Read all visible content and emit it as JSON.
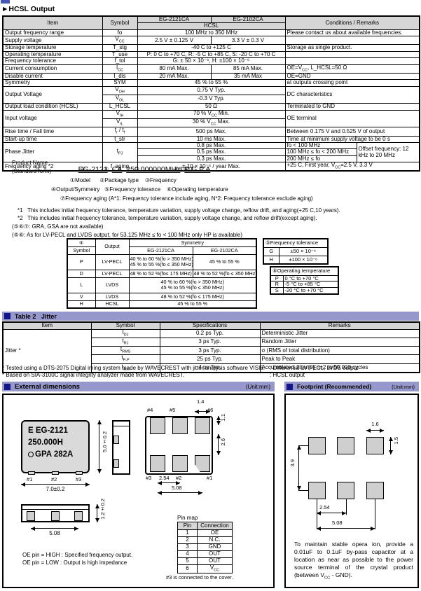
{
  "page": {
    "heading": "►HCSL Output"
  },
  "colors": {
    "bar": "#9697ca",
    "bar_square": "#15158a",
    "table_header": "#d6d6d6",
    "package_fill": "#dadada",
    "pad_fill": "#cfcfcf",
    "logo_blue": "#4358b0"
  },
  "spec": {
    "head": {
      "item": "Item",
      "symbol": "Symbol",
      "m1": "EG-2121CA",
      "m2": "EG-2102CA",
      "out": "HCSL",
      "cond": "Conditions / Remarks"
    },
    "freq_range": {
      "item": "Output frequency range",
      "sym": "fo",
      "val": "100 MHz to 350 MHz",
      "rem": "Please contact us about available frequencies."
    },
    "supply": {
      "item": "Supply voltage",
      "sym": [
        {
          "t": "V"
        },
        {
          "s": "CC"
        }
      ],
      "v1": "2.5 V ± 0.125 V",
      "v2": "3.3 V ± 0.3 V",
      "rem": ""
    },
    "storage": {
      "item": "Storage temperature",
      "sym": "T_stg",
      "val": "-40 C to +125 C",
      "rem": "Storage as single product."
    },
    "op_temp": {
      "item": "Operating temperature",
      "sym": "T_use",
      "val": "P: 0 C to +70 C, R: -5 C to +85 C, S: -20 C to +70 C",
      "rem": ""
    },
    "freq_tol": {
      "item": "Frequency tolerance",
      "sym": "f_tol",
      "val": "G: ± 50 × 10⁻⁶, H: ±100 × 10⁻⁶",
      "rem": ""
    },
    "icc": {
      "item": "Current consumption",
      "sym": [
        {
          "t": "I"
        },
        {
          "s": "CC"
        }
      ],
      "v1": "80 mA Max.",
      "v2": "85 mA Max.",
      "rem": [
        {
          "t": "OE=V"
        },
        {
          "s": "CC"
        },
        {
          "t": ", L_HCSL=50 Ω"
        }
      ]
    },
    "idis": {
      "item": "Disable current",
      "sym": "I_dis",
      "v1": "20 mA Max.",
      "v2": "35 mA Max",
      "rem": "OE=GND"
    },
    "sym_row": {
      "item": "Symmetry",
      "sym": "SYM",
      "val": "45 % to 55 %",
      "rem": "at outputs crossing point"
    },
    "vout": {
      "item": "Output Voltage",
      "sym_h": [
        {
          "t": "V"
        },
        {
          "s": "OH"
        }
      ],
      "sym_l": [
        {
          "t": "V"
        },
        {
          "s": "OL"
        }
      ],
      "v_h": "0.75 V Typ.",
      "v_l": "-0.3 V Typ.",
      "rem": "DC characteristics"
    },
    "load": {
      "item": "Output load condition (HCSL)",
      "sym": "L_HCSL",
      "val": "50 Ω",
      "rem": "Terminated to GND"
    },
    "vin": {
      "item": "Input voltage",
      "sym_h": [
        {
          "t": "V"
        },
        {
          "s": "IH"
        }
      ],
      "sym_l": [
        {
          "t": "V"
        },
        {
          "s": "IL"
        }
      ],
      "v_h": [
        {
          "t": "70 % V"
        },
        {
          "s": "CC"
        },
        {
          "t": " Min."
        }
      ],
      "v_l": [
        {
          "t": "30 % V"
        },
        {
          "s": "CC"
        },
        {
          "t": " Max."
        }
      ],
      "rem": "OE terminal"
    },
    "rise": {
      "item": "Rise time / Fall time",
      "sym": [
        {
          "t": "t"
        },
        {
          "s": "r"
        },
        {
          "t": " / t"
        },
        {
          "s": "f"
        }
      ],
      "val": "500 ps Max.",
      "rem": "Between 0.175 V and 0.525 V of output"
    },
    "startup": {
      "item": "Start-up time",
      "sym": "t_str",
      "val": "10 ms Max.",
      "rem": "Time at minimum supply voltage to be 0 s"
    },
    "pj": {
      "item": "Phase Jitter",
      "sym": [
        {
          "t": "t"
        },
        {
          "s": "PJ"
        }
      ],
      "v1": "0.8 ps Max.",
      "c1": "fo < 100 MHz",
      "v2": "0.5 ps Max.",
      "c2": "100 MHz ≤ fo < 200 MHz",
      "v3": "0.3 ps Max.",
      "c3": "200 MHz ≤ fo",
      "offset": "Offset frequency: 12 kHz to 20 MHz"
    },
    "aging": {
      "item": "Frequency aging *2",
      "sym": "f_aging",
      "val": "± 10 × 10⁻⁶ / year Max.",
      "rem": [
        {
          "t": "+25 C, First year, V"
        },
        {
          "s": "CC"
        },
        {
          "t": "=2.5 V, 3.3 V"
        }
      ]
    }
  },
  "product": {
    "label_line1": "Product Name",
    "label_line2": "(Standard form)",
    "code_seg1": "EG-2121",
    "code_seg2": "CA",
    "code_seg3": "250.000000MHz",
    "code_seg4": "P G P A",
    "mark1": "①",
    "mark2": "②",
    "mark3": "③",
    "mark4": "④⑤⑥⑦",
    "legend1": "①Model      ②Package type    ③Frequency",
    "legend2": "④Output/Symmetry   ⑤Frequency tolerance    ⑥Operating temperature",
    "legend3": "⑦Frequency aging (A*1: Frequency tolerance include aging, N*2: Frequency tolerance exclude aging)",
    "note1": "*1   This includes initial frequency tolerance, temperature variation, supply voltage change, reflow drift, and aging(+25 C,10 years).",
    "note2": "*2   This includes initial frequency tolerance, temperature variation, supply voltage change, and reflow drift(except aging).",
    "note3": "(⑤⑥⑦: GRA, GSA are not available)",
    "note4": "(⑤⑥: As for LV-PECL and LVDS output, for 53.125 MHz ≤ fo < 100 MHz only HP is available)"
  },
  "symmetry": {
    "head": {
      "c1a": "④",
      "c1b": "Symbol",
      "c2": "Output",
      "c3": "Symmetry",
      "m1": "EG-2121CA",
      "m2": "EG-2102CA"
    },
    "p": {
      "s": "P",
      "o": "LV-PECL",
      "v1a": "40 % to 60 %(fo > 350 MHz)",
      "v1b": "45 % to 55 %(fo ≤ 350 MHz)",
      "v2": "45 % to 55 %"
    },
    "d": {
      "s": "D",
      "o": "LV-PECL",
      "v1": "48 % to 52 %(fo≤ 175 MHz)",
      "v2": "48 % to 52 %(fo ≤ 350 MHz)"
    },
    "l": {
      "s": "L",
      "o": "LVDS",
      "va": "40 % to 60 %(fo > 350 MHz)",
      "vb": "45 % to 55 %(fo ≤ 350 MHz)"
    },
    "v": {
      "s": "V",
      "o": "LVDS",
      "va": "48 % to 52 %(fo ≤ 175 MHz)"
    },
    "h": {
      "s": "H",
      "o": "HCSL",
      "va": "45 % to 55 %"
    }
  },
  "freq_tol_tbl": {
    "title": "⑤Frequency tolerance",
    "r1s": "G",
    "r1v": "±50 × 10⁻⁶",
    "r2s": "H",
    "r2v": "±100 × 10⁻⁶"
  },
  "op_temp_tbl": {
    "title": "⑥Operating temperature",
    "r1s": "P",
    "r1v": "0 °C to +70 °C",
    "r2s": "R",
    "r2v": "-5 °C to +85 °C",
    "r3s": "S",
    "r3v": "-20 °C to +70 °C"
  },
  "jitter": {
    "bar_title": "Table 2   Jitter",
    "head": {
      "item": "Item",
      "symbol": "Symbol",
      "spec": "Specifications",
      "rem": "Remarks"
    },
    "item_label": "Jitter *",
    "r1": {
      "sym": [
        {
          "t": "t"
        },
        {
          "s": "DJ"
        }
      ],
      "spec": "0.2 ps Typ.",
      "rem": "Deterministic Jitter"
    },
    "r2": {
      "sym": [
        {
          "t": "t"
        },
        {
          "s": "RJ"
        }
      ],
      "spec": "3 ps Typ.",
      "rem": "Random Jitter"
    },
    "r3": {
      "sym": [
        {
          "t": "t"
        },
        {
          "s": "RMS"
        }
      ],
      "spec": "3 ps Typ.",
      "rem": "σ (RMS of total distribution)"
    },
    "r4": {
      "sym": [
        {
          "t": "t"
        },
        {
          "s": "P-P"
        }
      ],
      "spec": "25 ps Typ.",
      "rem": "Peak to Peak"
    },
    "r5": {
      "sym": [
        {
          "t": "t"
        },
        {
          "s": "acc"
        }
      ],
      "spec": "4 ps Typ.",
      "rem": "Accumulated Jitter(σ) n=2 to 50 000 cycles"
    },
    "foot1": "* Tested using a DTS-2075 Digital iming system made by WAVECREST with jitter analysis software VISI6.",
    "foot2": "* Based on SIA-3100C signal integrity analyzer made from WAVECREST.",
    "note1": ": Differential LV-PECL, LVDS output",
    "note2": ": HCSL output"
  },
  "external": {
    "bar_title": "External dimensions",
    "unit": "(Unit:mm)",
    "pkg_line1": "E EG-2121",
    "pkg_line2": "250.000H",
    "pkg_line3": "GPA 282A",
    "top_pads": [
      "#1",
      "#2",
      "#3"
    ],
    "dim_w": "7.0±0.2",
    "dim_h": "5.0±0.2",
    "bv_top_pads": [
      "#4",
      "#5",
      "#6"
    ],
    "bv_bot_pads": [
      "#3",
      "#2",
      "#1"
    ],
    "dim_14": "1.4",
    "dim_11": "1.1",
    "dim_26": "2.6",
    "dim_254": "2.54",
    "dim_508": "5.08",
    "pr_dim_508": "5.08",
    "pr_dim_h": "1.2±0.2",
    "pinmap_title": "Pin map",
    "pin_head": {
      "pin": "Pin",
      "conn": "Connection"
    },
    "pin1": {
      "n": "1",
      "c": "OE"
    },
    "pin2": {
      "n": "2",
      "c": "N.C."
    },
    "pin3": {
      "n": "3",
      "c": "GND"
    },
    "pin4": {
      "n": "4",
      "c": "OUT"
    },
    "pin5": {
      "n": "5",
      "c": [
        {
          "o": "OUT"
        }
      ]
    },
    "pin6": {
      "n": "6",
      "c": [
        {
          "t": "V"
        },
        {
          "s": "CC"
        }
      ]
    },
    "pin_note": "#3 is connected to the cover.",
    "oe_note1": "OE pin = HIGH : Specified frequency output.",
    "oe_note2": "OE pin = LOW : Output is high impedance"
  },
  "footprint": {
    "bar_title": "Footprint (Recommended)",
    "unit": "(Unit:mm)",
    "dim_16": "1.6",
    "dim_15": "1.5",
    "dim_39": "3.9",
    "dim_254": "2.54",
    "dim_508": "5.08",
    "note": [
      {
        "t": "To maintain stable opera ion, provide a 0.01uF to 0.1uF by-pass capacitor at a location as near as possible to the power source terminal of the crystal product (between V"
      },
      {
        "s": "CC"
      },
      {
        "t": " - GND)."
      }
    ]
  }
}
